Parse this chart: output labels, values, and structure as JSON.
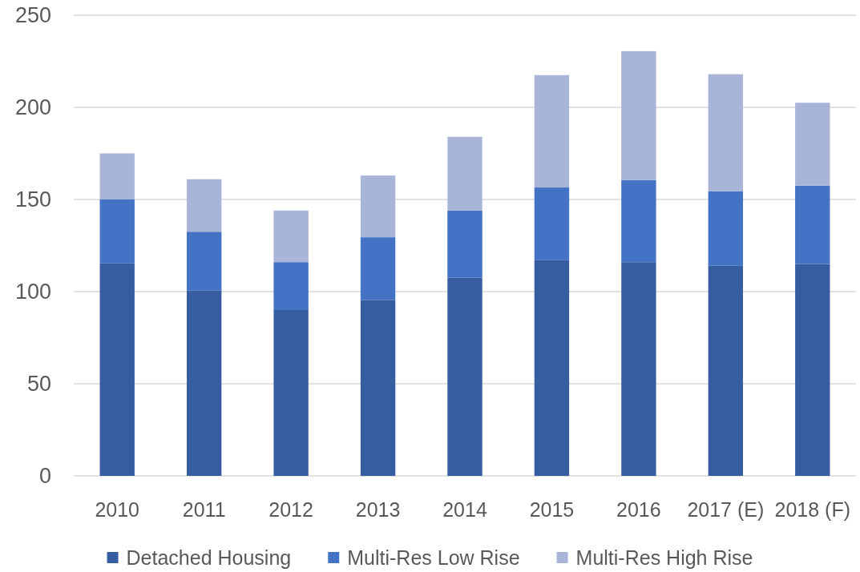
{
  "chart_data": {
    "type": "bar",
    "stacked": true,
    "categories": [
      "2010",
      "2011",
      "2012",
      "2013",
      "2014",
      "2015",
      "2016",
      "2017 (E)",
      "2018 (F)"
    ],
    "series": [
      {
        "name": "Detached Housing",
        "color": "#365da0",
        "values": [
          115.5,
          100.5,
          90,
          95.5,
          107.5,
          117,
          116,
          114,
          115
        ]
      },
      {
        "name": "Multi-Res Low Rise",
        "color": "#4472c4",
        "values": [
          34.5,
          32,
          26,
          34,
          36.5,
          39.5,
          44.5,
          40.5,
          42.5
        ]
      },
      {
        "name": "Multi-Res High Rise",
        "color": "#a9b4d9",
        "values": [
          25,
          28.5,
          28,
          33.5,
          40,
          61,
          70,
          63.5,
          45
        ]
      }
    ],
    "ylim": [
      0,
      250
    ],
    "yticks": [
      0,
      50,
      100,
      150,
      200,
      250
    ],
    "grid": "y",
    "legend": "bottom"
  }
}
